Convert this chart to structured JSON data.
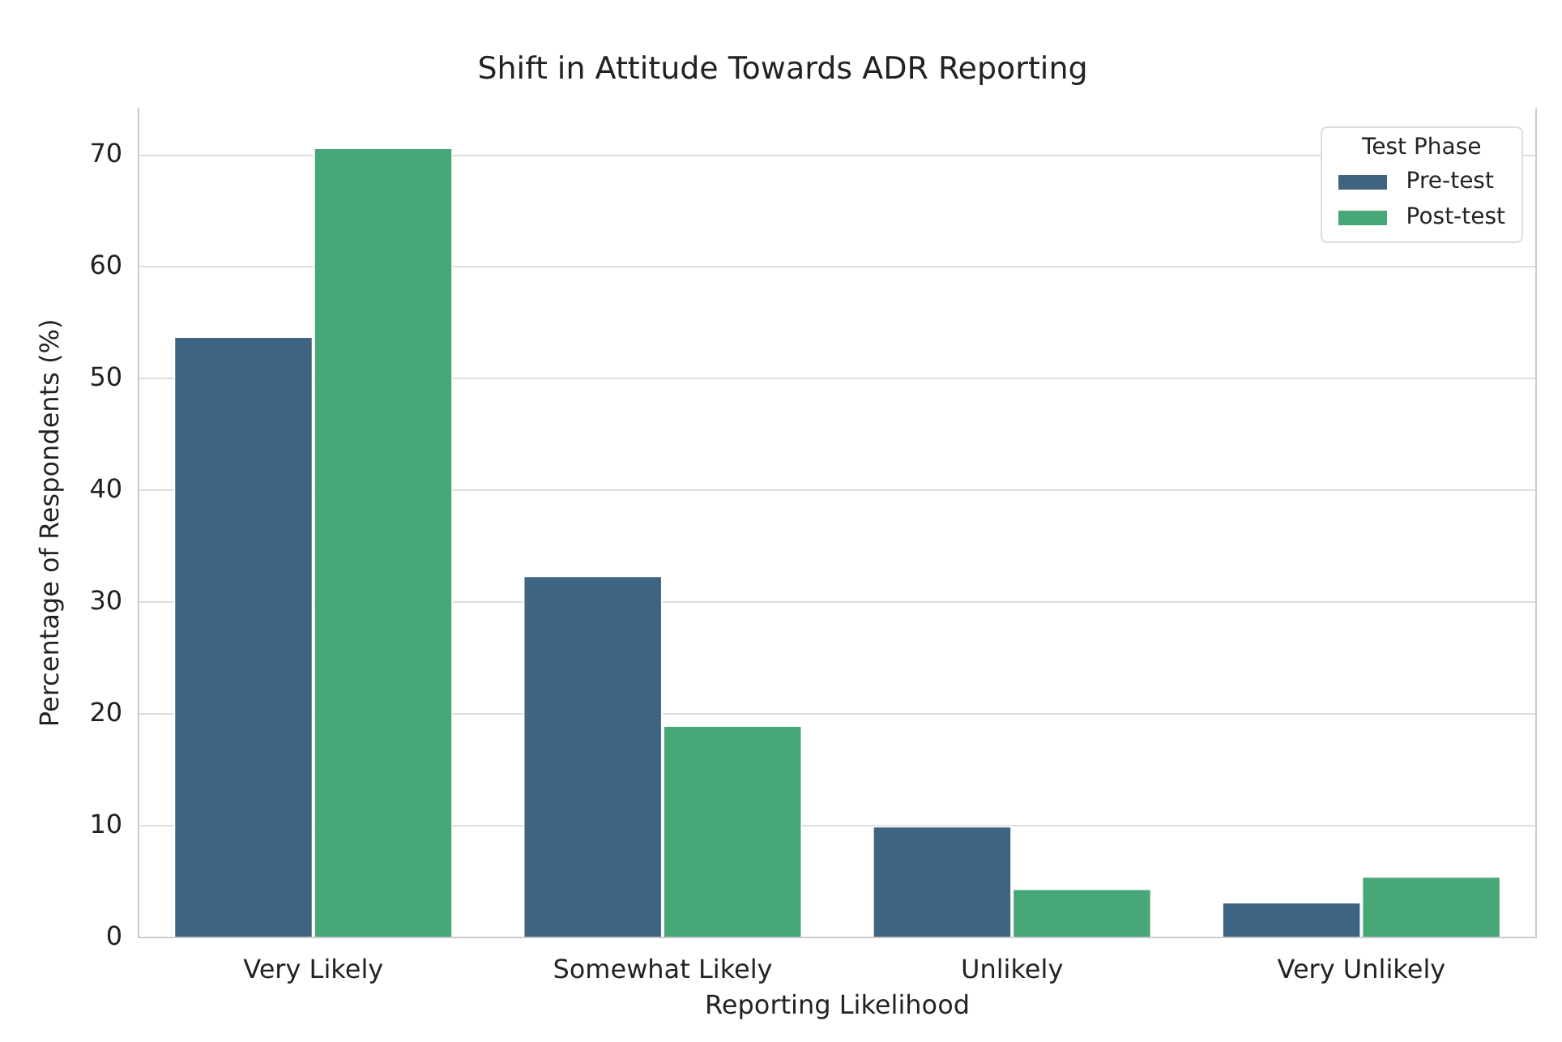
{
  "chart_data": {
    "type": "bar",
    "title": "Shift in Attitude Towards ADR Reporting",
    "xlabel": "Reporting Likelihood",
    "ylabel": "Percentage of Respondents (%)",
    "legend_title": "Test Phase",
    "categories": [
      "Very Likely",
      "Somewhat Likely",
      "Unlikely",
      "Very Unlikely"
    ],
    "series": [
      {
        "name": "Pre-test",
        "color": "#3e6482",
        "values": [
          53.8,
          32.4,
          10.0,
          3.2
        ]
      },
      {
        "name": "Post-test",
        "color": "#47a777",
        "values": [
          70.7,
          19.0,
          4.4,
          5.5
        ]
      }
    ],
    "ylim": [
      0,
      74.2
    ],
    "yticks": [
      0,
      10,
      20,
      30,
      40,
      50,
      60,
      70
    ],
    "grid": "y",
    "legend": "top right"
  }
}
